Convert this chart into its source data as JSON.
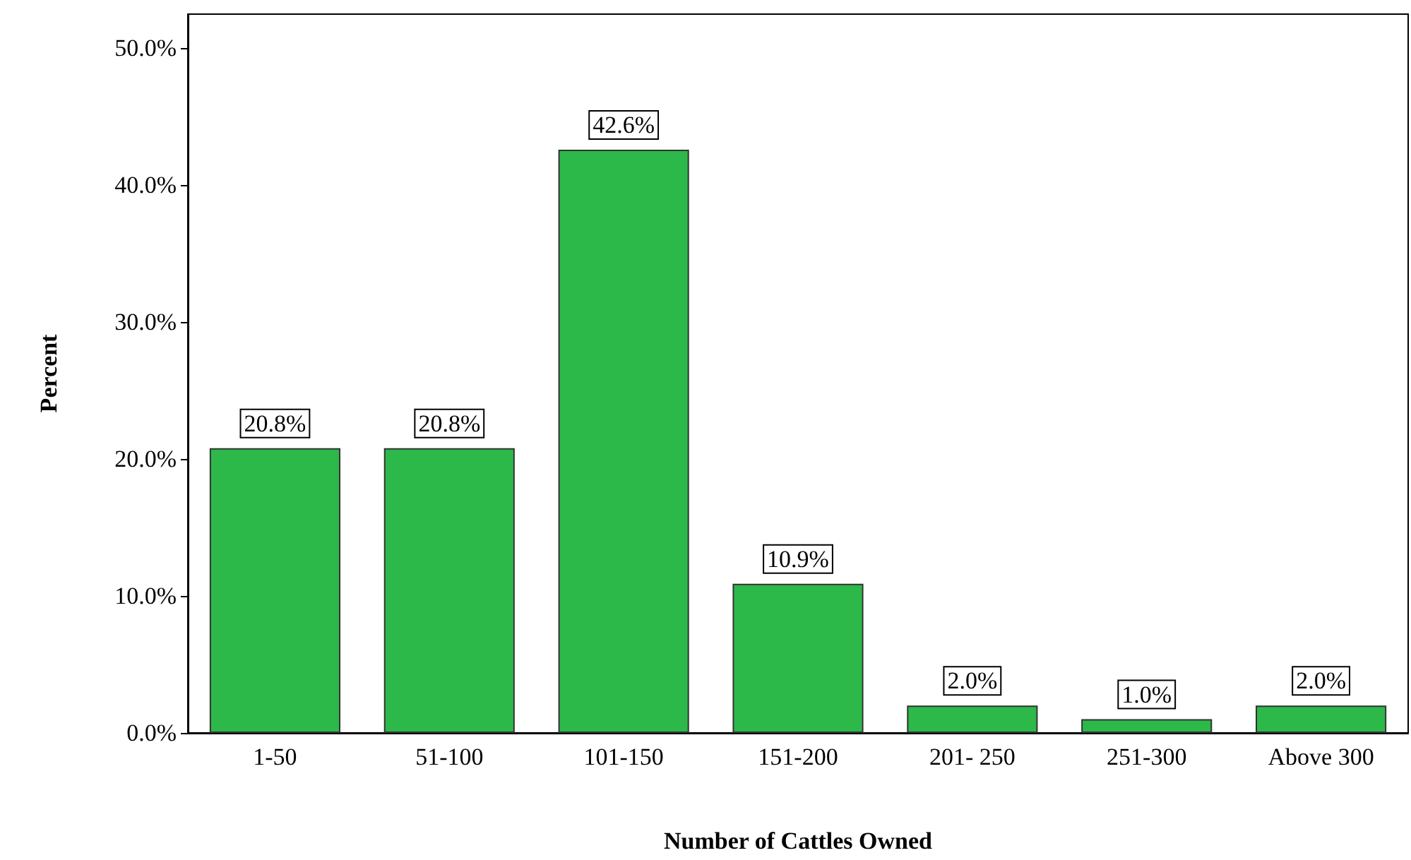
{
  "chart_data": {
    "type": "bar",
    "xlabel": "Number of Cattles Owned",
    "ylabel": "Percent",
    "categories": [
      "1-50",
      "51-100",
      "101-150",
      "151-200",
      "201- 250",
      "251-300",
      "Above 300"
    ],
    "values": [
      20.8,
      20.8,
      42.6,
      10.9,
      2.0,
      1.0,
      2.0
    ],
    "value_labels": [
      "20.8%",
      "20.8%",
      "42.6%",
      "10.9%",
      "2.0%",
      "1.0%",
      "2.0%"
    ],
    "color": "#2db84a",
    "ylim": [
      0,
      52.5
    ],
    "yticks": [
      {
        "value": 0,
        "label": "0.0%"
      },
      {
        "value": 10,
        "label": "10.0%"
      },
      {
        "value": 20,
        "label": "20.0%"
      },
      {
        "value": 30,
        "label": "30.0%"
      },
      {
        "value": 40,
        "label": "40.0%"
      },
      {
        "value": 50,
        "label": "50.0%"
      }
    ],
    "grid": false
  }
}
